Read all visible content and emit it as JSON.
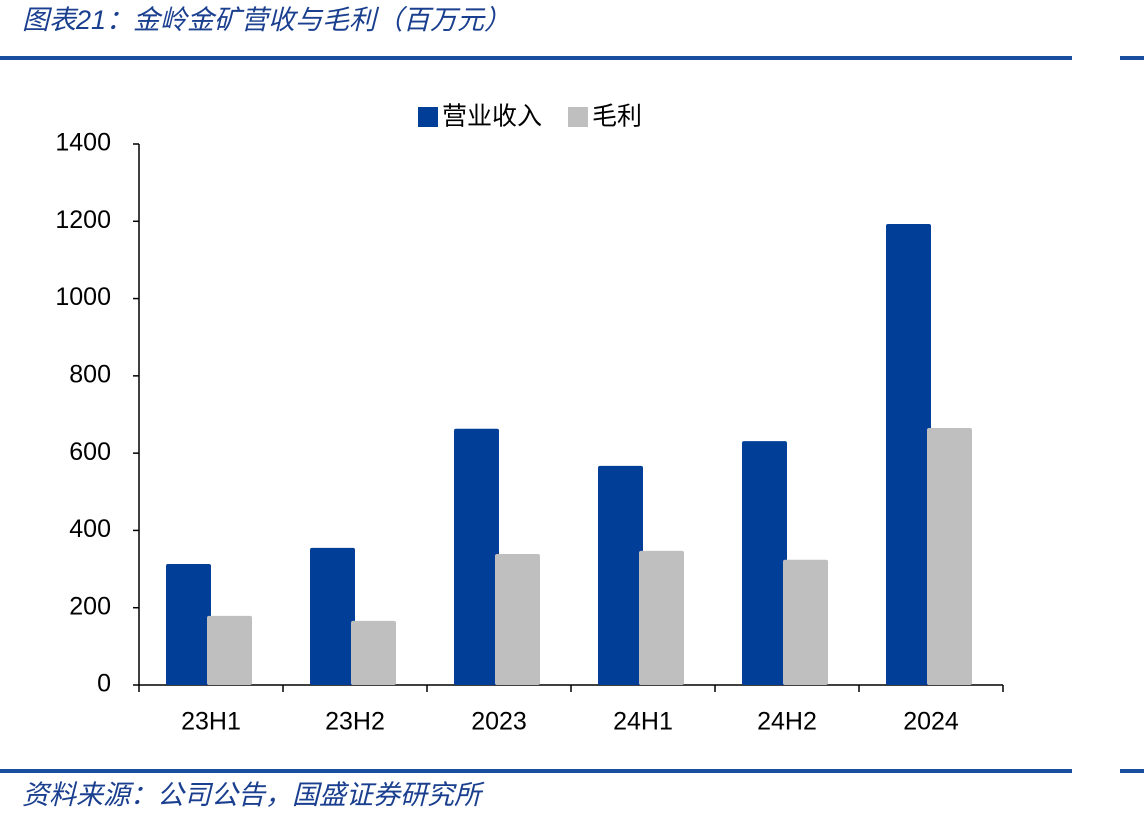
{
  "chart_data": {
    "type": "bar",
    "title": "图表21：金岭金矿营收与毛利（百万元）",
    "source": "资料来源：公司公告，国盛证券研究所",
    "categories": [
      "23H1",
      "23H2",
      "2023",
      "24H1",
      "24H2",
      "2024"
    ],
    "series": [
      {
        "name": "营业收入",
        "color": "#003e97",
        "values": [
          313,
          355,
          663,
          567,
          631,
          1193
        ]
      },
      {
        "name": "毛利",
        "color": "#bfbfbf",
        "values": [
          179,
          166,
          339,
          347,
          324,
          665
        ]
      }
    ],
    "ylim": [
      0,
      1400
    ],
    "yticks": [
      0,
      200,
      400,
      600,
      800,
      1000,
      1200,
      1400
    ],
    "grid": false,
    "legend": "top"
  }
}
